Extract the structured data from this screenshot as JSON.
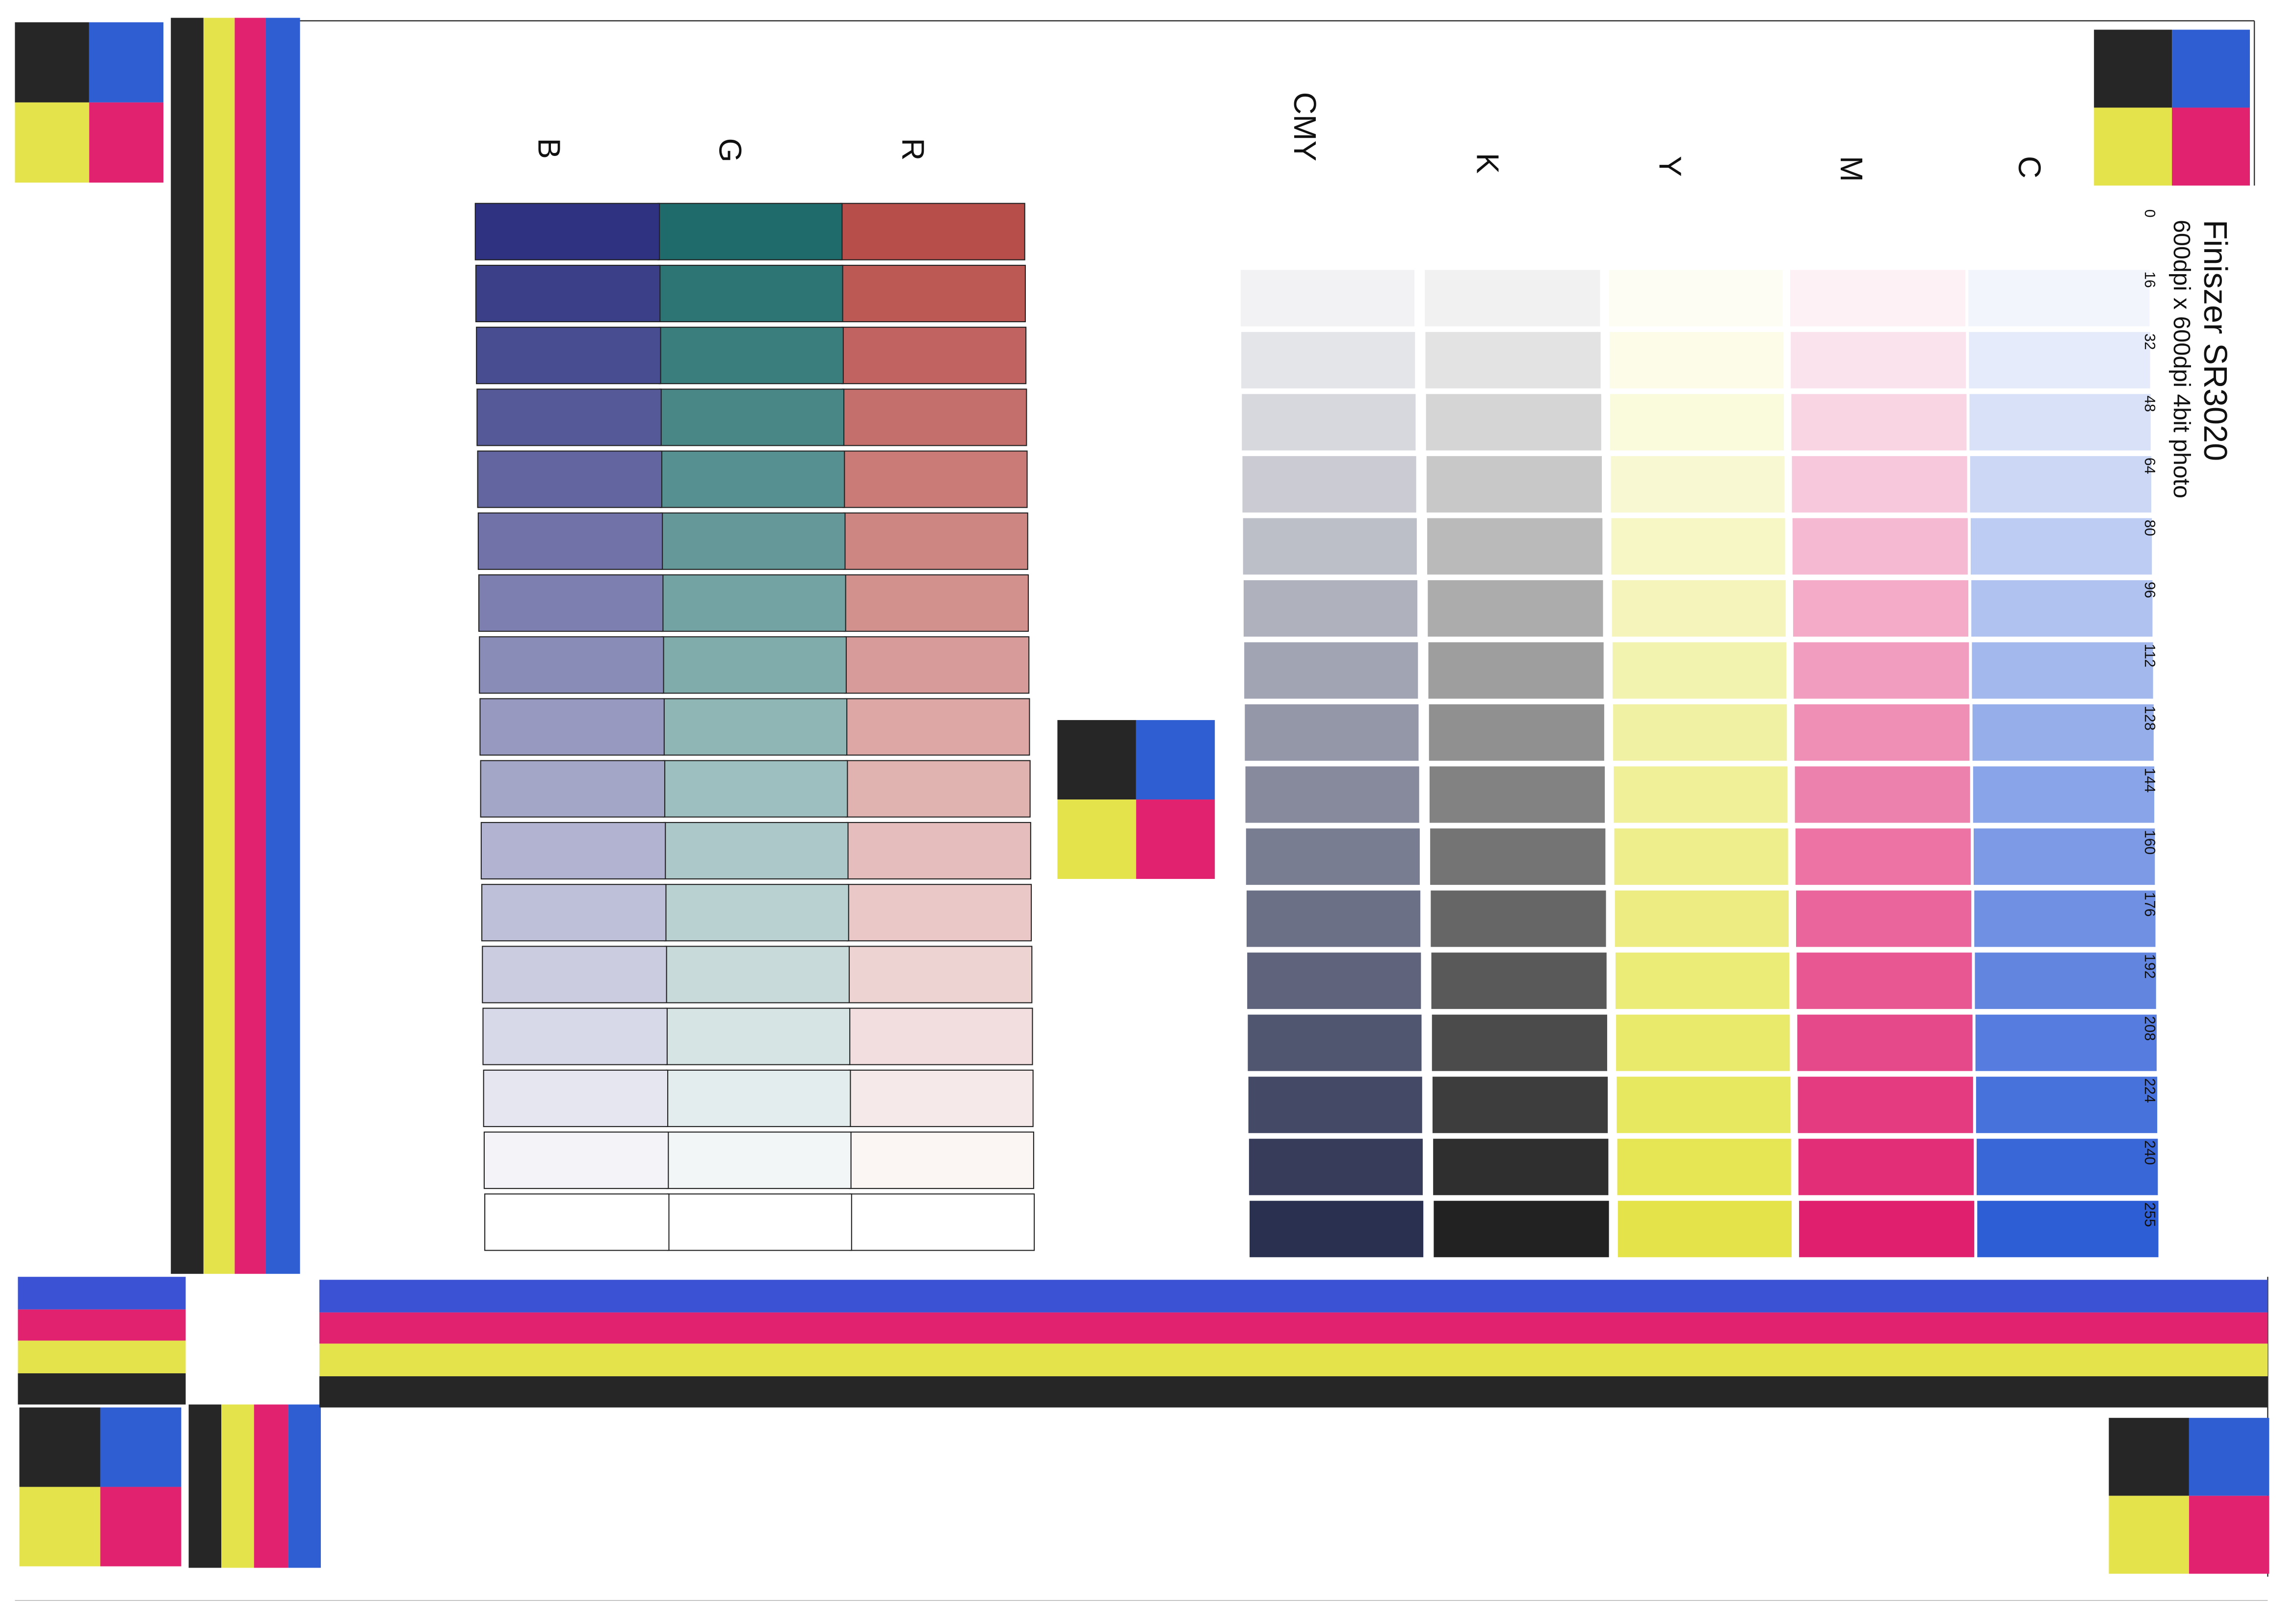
{
  "header": {
    "title": "Finiszer SR3020",
    "subtitle": "600dpi x 600dpi 4bit photo"
  },
  "channels": [
    "C",
    "M",
    "Y",
    "K",
    "CMY",
    "R",
    "G",
    "B"
  ],
  "levels": [
    0,
    16,
    32,
    48,
    64,
    80,
    96,
    112,
    128,
    144,
    160,
    176,
    192,
    208,
    224,
    240,
    255
  ]
}
